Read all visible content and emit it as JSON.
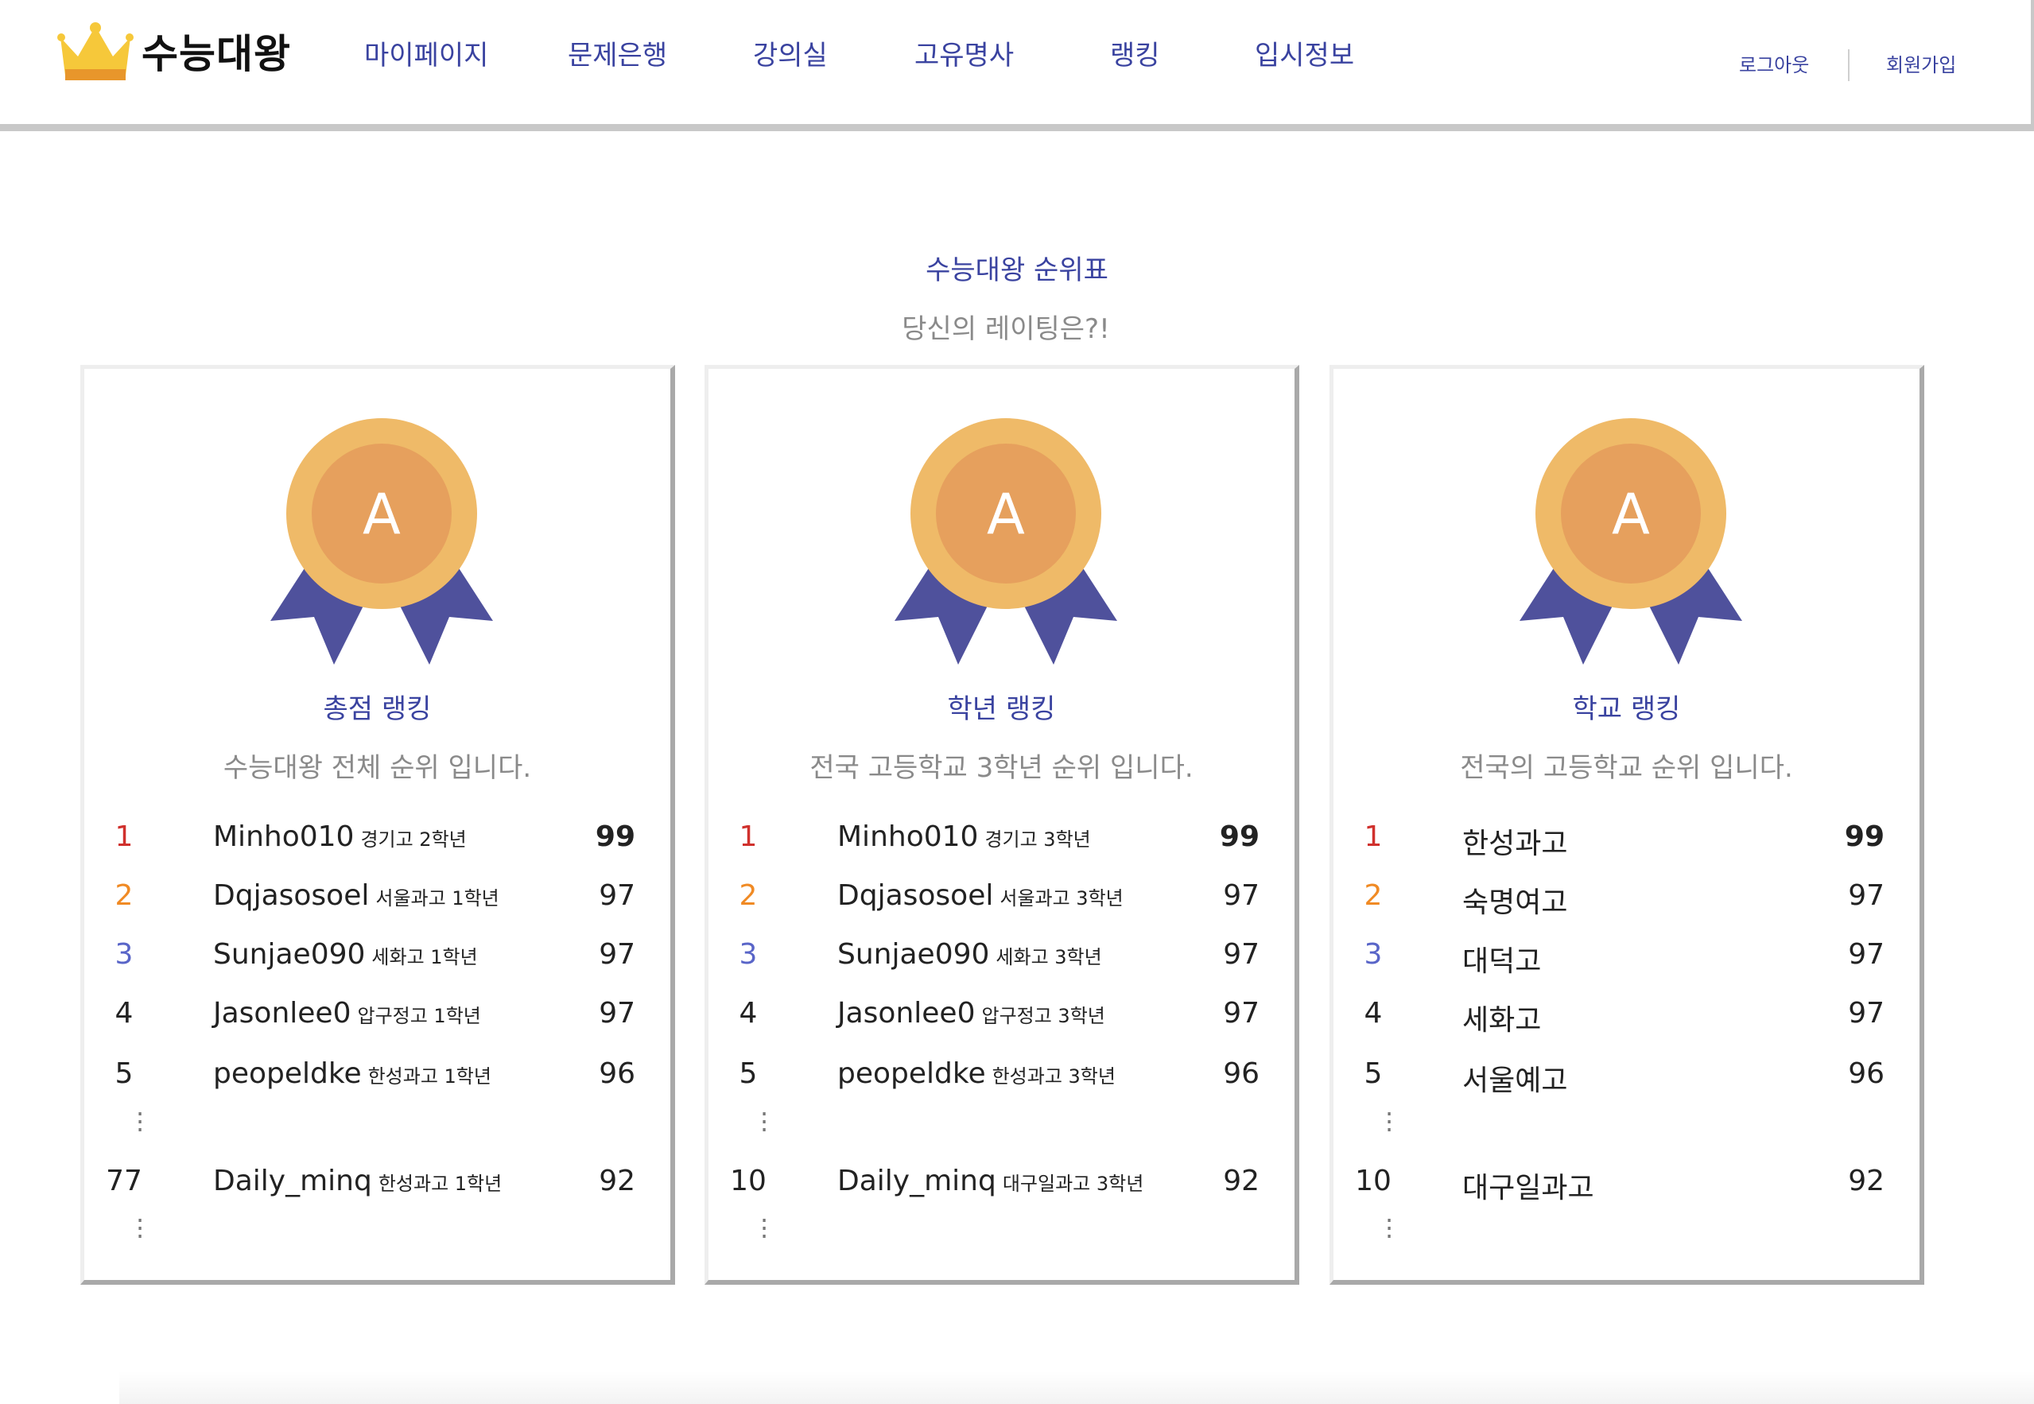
{
  "header": {
    "logo_text": "수능대왕",
    "nav": [
      "마이페이지",
      "문제은행",
      "강의실",
      "고유명사",
      "랭킹",
      "입시정보"
    ],
    "logout": "로그아웃",
    "signup": "회원가입"
  },
  "intro": {
    "title": "수능대왕 순위표",
    "subtitle": "당신의 레이팅은?!"
  },
  "colors": {
    "accent": "#3a43a0",
    "medal_outer": "#efba68",
    "medal_inner": "#e6a05d",
    "ribbon": "#4f519c",
    "rank1": "#d0312d",
    "rank2": "#f08a24",
    "rank3": "#5965c8"
  },
  "cards": [
    {
      "medal_letter": "A",
      "title": "총점 랭킹",
      "desc": "수능대왕 전체 순위 입니다.",
      "rows": [
        {
          "rank": "1",
          "name": "Minho010",
          "school": "경기고 2학년",
          "score": "99"
        },
        {
          "rank": "2",
          "name": "Dqjasosoel",
          "school": "서울과고 1학년",
          "score": "97"
        },
        {
          "rank": "3",
          "name": "Sunjae090",
          "school": "세화고 1학년",
          "score": "97"
        },
        {
          "rank": "4",
          "name": "Jasonlee0",
          "school": "압구정고 1학년",
          "score": "97"
        },
        {
          "rank": "5",
          "name": "peopeldke",
          "school": "한성과고 1학년",
          "score": "96"
        }
      ],
      "me": {
        "rank": "77",
        "name": "Daily_minq",
        "school": "한성과고 1학년",
        "score": "92"
      }
    },
    {
      "medal_letter": "A",
      "title": "학년 랭킹",
      "desc": "전국 고등학교 3학년 순위 입니다.",
      "rows": [
        {
          "rank": "1",
          "name": "Minho010",
          "school": "경기고 3학년",
          "score": "99"
        },
        {
          "rank": "2",
          "name": "Dqjasosoel",
          "school": "서울과고 3학년",
          "score": "97"
        },
        {
          "rank": "3",
          "name": "Sunjae090",
          "school": "세화고 3학년",
          "score": "97"
        },
        {
          "rank": "4",
          "name": "Jasonlee0",
          "school": "압구정고 3학년",
          "score": "97"
        },
        {
          "rank": "5",
          "name": "peopeldke",
          "school": "한성과고 3학년",
          "score": "96"
        }
      ],
      "me": {
        "rank": "10",
        "name": "Daily_minq",
        "school": "대구일과고 3학년",
        "score": "92"
      }
    },
    {
      "medal_letter": "A",
      "title": "학교 랭킹",
      "desc": "전국의 고등학교 순위 입니다.",
      "rows": [
        {
          "rank": "1",
          "name": "한성과고",
          "school": "",
          "score": "99"
        },
        {
          "rank": "2",
          "name": "숙명여고",
          "school": "",
          "score": "97"
        },
        {
          "rank": "3",
          "name": "대덕고",
          "school": "",
          "score": "97"
        },
        {
          "rank": "4",
          "name": "세화고",
          "school": "",
          "score": "97"
        },
        {
          "rank": "5",
          "name": "서울예고",
          "school": "",
          "score": "96"
        }
      ],
      "me": {
        "rank": "10",
        "name": "대구일과고",
        "school": "",
        "score": "92"
      }
    }
  ]
}
